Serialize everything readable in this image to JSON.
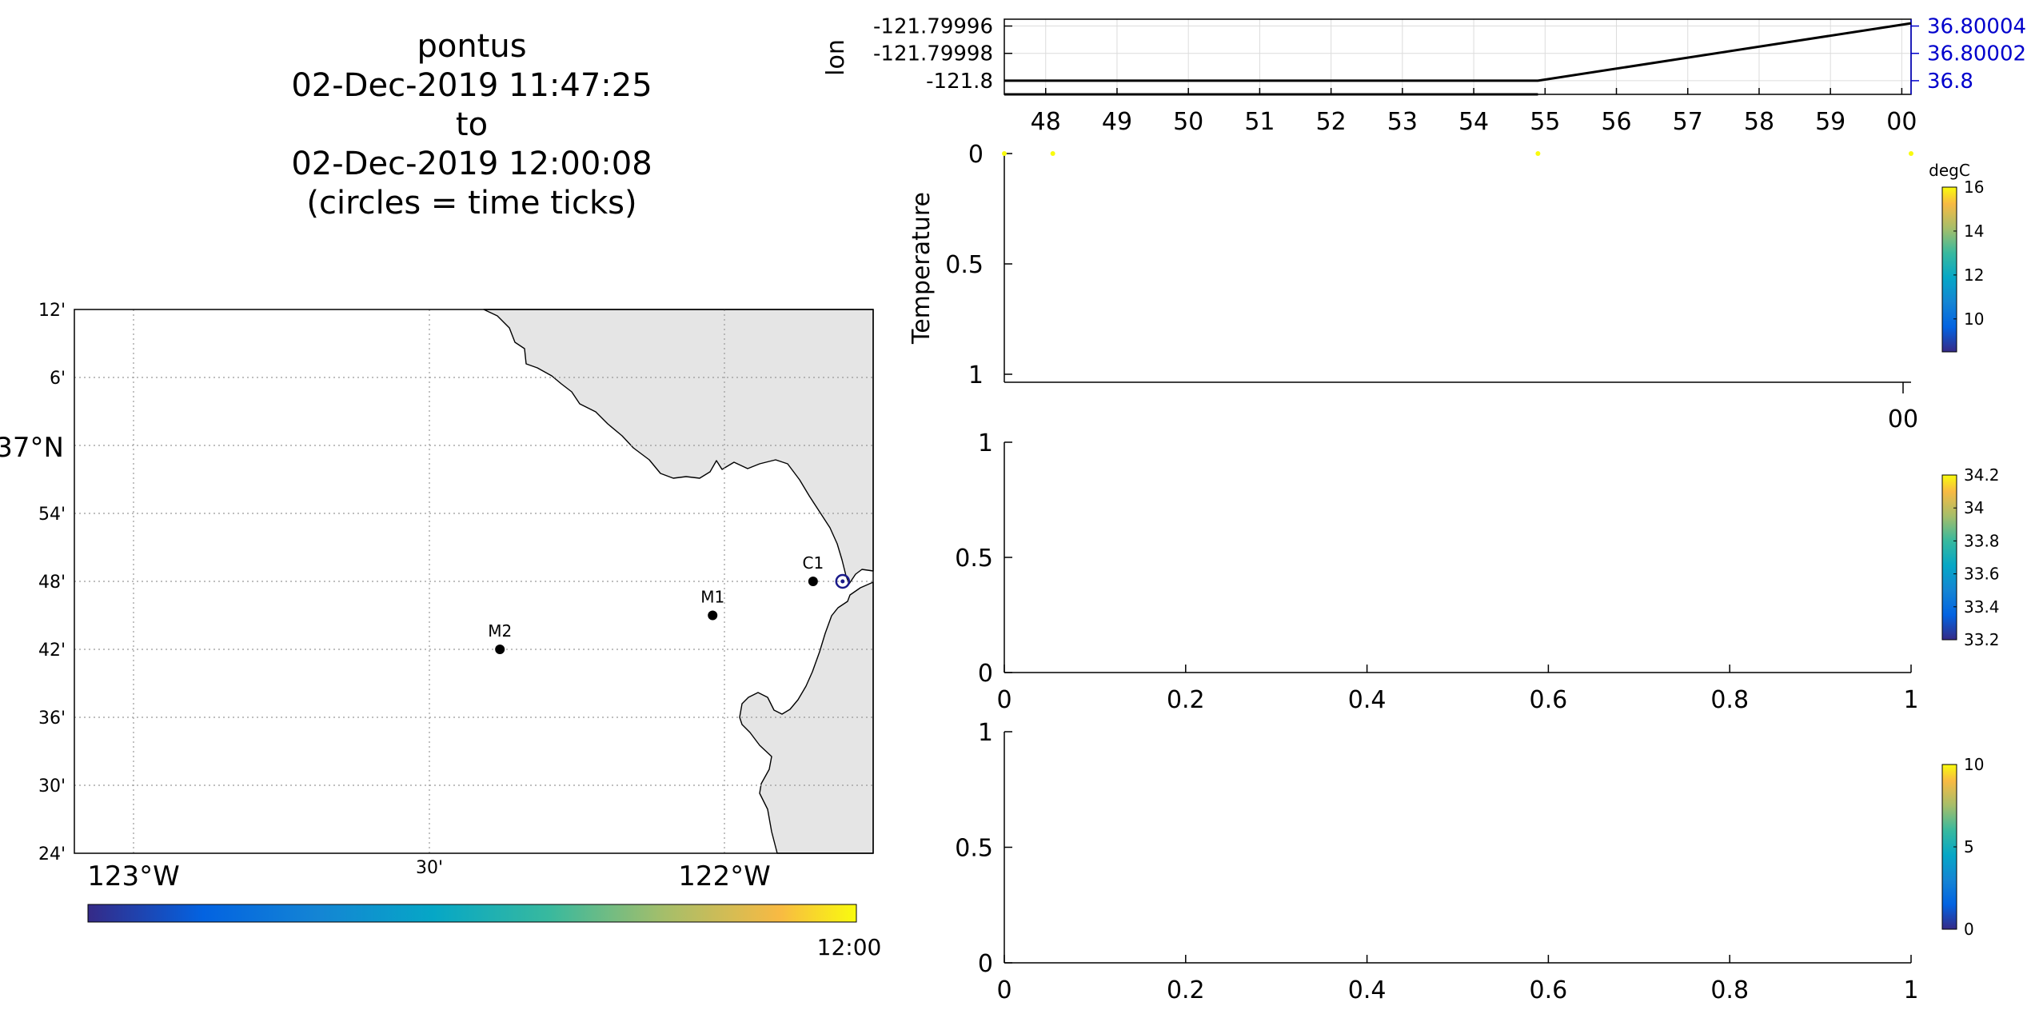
{
  "title": {
    "line1": "pontus",
    "line2": "02-Dec-2019 11:47:25",
    "line3": "to",
    "line4": "02-Dec-2019 12:00:08",
    "line5": "(circles = time ticks)"
  },
  "chart_data": [
    {
      "type": "line",
      "name": "position-panel",
      "ylabel": "lon",
      "x_ticks": [
        "48",
        "49",
        "50",
        "51",
        "52",
        "53",
        "54",
        "55",
        "56",
        "57",
        "58",
        "59",
        "00"
      ],
      "x_range_minutes": [
        47.42,
        60.13
      ],
      "y_left_ticks": [
        "-121.79996",
        "-121.79998",
        "-121.8"
      ],
      "y_left_range": [
        -121.80001,
        -121.799955
      ],
      "y_right_ticks": [
        "36.80004",
        "36.80002",
        "36.8"
      ],
      "y_right_color": "#0000cc",
      "series": [
        {
          "color": "#000000",
          "points": [
            [
              47.42,
              -121.8
            ],
            [
              54.9,
              -121.8
            ],
            [
              60.13,
              -121.799958
            ]
          ]
        },
        {
          "color": "#000000",
          "points": [
            [
              47.42,
              -121.80001
            ],
            [
              54.9,
              -121.80001
            ]
          ]
        }
      ],
      "grid": true
    },
    {
      "type": "scatter",
      "name": "temperature-panel",
      "ylabel": "Temperature",
      "y_ticks": [
        "0",
        "0.5",
        "1"
      ],
      "y_range": [
        0,
        1
      ],
      "x_ticks": [
        "00"
      ],
      "points_x_minutes": [
        47.42,
        48.1,
        54.9,
        60.13
      ],
      "point_color": "#f9fb0e",
      "colorbar": {
        "label": "degC",
        "ticks": [
          "16",
          "14",
          "12",
          "10"
        ],
        "range": [
          8.5,
          16
        ]
      }
    },
    {
      "type": "scatter",
      "name": "salinity-panel",
      "x_ticks": [
        "0",
        "0.2",
        "0.4",
        "0.6",
        "0.8",
        "1"
      ],
      "y_ticks": [
        "0",
        "0.5",
        "1"
      ],
      "xlim": [
        0,
        1
      ],
      "ylim": [
        0,
        1
      ],
      "colorbar": {
        "ticks": [
          "34.2",
          "34",
          "33.8",
          "33.6",
          "33.4",
          "33.2"
        ],
        "range": [
          33.2,
          34.2
        ]
      }
    },
    {
      "type": "scatter",
      "name": "third-panel",
      "x_ticks": [
        "0",
        "0.2",
        "0.4",
        "0.6",
        "0.8",
        "1"
      ],
      "y_ticks": [
        "0",
        "0.5",
        "1"
      ],
      "xlim": [
        0,
        1
      ],
      "ylim": [
        0,
        1
      ],
      "colorbar": {
        "ticks": [
          "10",
          "5",
          "0"
        ],
        "range": [
          0,
          10
        ]
      }
    },
    {
      "type": "scatter",
      "name": "map-panel",
      "lon_ticks": [
        "123°W",
        "30'",
        "122°W"
      ],
      "lat_ticks": [
        "12'",
        "6'",
        "37°N",
        "54'",
        "48'",
        "42'",
        "36'",
        "30'",
        "24'"
      ],
      "lon_range": [
        -123.1,
        -121.75
      ],
      "lat_range": [
        36.4,
        37.2
      ],
      "stations": [
        {
          "label": "C1",
          "lon": -121.85,
          "lat": 36.8
        },
        {
          "label": "M1",
          "lon": -122.02,
          "lat": 36.75
        },
        {
          "label": "M2",
          "lon": -122.38,
          "lat": 36.7
        }
      ],
      "vehicle_position": {
        "lon": -121.8,
        "lat": 36.8
      },
      "time_colorbar": {
        "end_label": "12:00"
      }
    }
  ]
}
